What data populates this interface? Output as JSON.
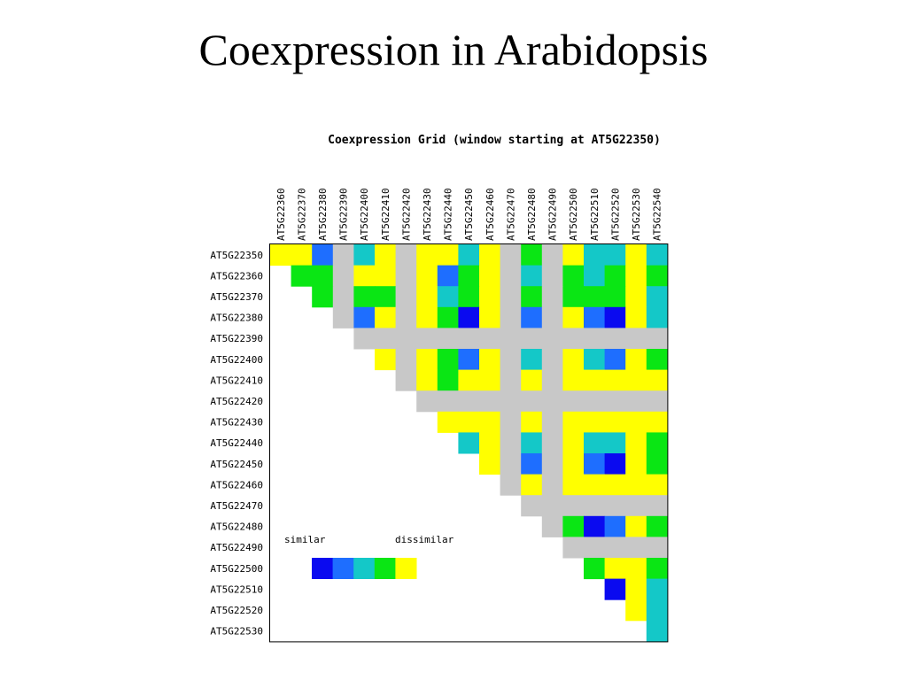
{
  "slide": {
    "title": "Coexpression in Arabidopsis"
  },
  "chart_data": {
    "type": "heatmap",
    "title": "Coexpression Grid (window starting at AT5G22350)",
    "column_labels": [
      "AT5G22360",
      "AT5G22370",
      "AT5G22380",
      "AT5G22390",
      "AT5G22400",
      "AT5G22410",
      "AT5G22420",
      "AT5G22430",
      "AT5G22440",
      "AT5G22450",
      "AT5G22460",
      "AT5G22470",
      "AT5G22480",
      "AT5G22490",
      "AT5G22500",
      "AT5G22510",
      "AT5G22520",
      "AT5G22530",
      "AT5G22540"
    ],
    "row_labels": [
      "AT5G22350",
      "AT5G22360",
      "AT5G22370",
      "AT5G22380",
      "AT5G22390",
      "AT5G22400",
      "AT5G22410",
      "AT5G22420",
      "AT5G22430",
      "AT5G22440",
      "AT5G22450",
      "AT5G22460",
      "AT5G22470",
      "AT5G22480",
      "AT5G22490",
      "AT5G22500",
      "AT5G22510",
      "AT5G22520",
      "AT5G22530"
    ],
    "scale": {
      "low_label": "similar",
      "high_label": "dissimilar",
      "levels": [
        {
          "level": 1,
          "color": "#0a0af0"
        },
        {
          "level": 2,
          "color": "#1e6eff"
        },
        {
          "level": 3,
          "color": "#14c8c8"
        },
        {
          "level": 4,
          "color": "#0ae614"
        },
        {
          "level": 5,
          "color": "#ffff00"
        }
      ],
      "no_data_color": "#c8c8c8"
    },
    "cells": [
      [
        "5",
        "5",
        "2",
        "G",
        "3",
        "5",
        "G",
        "5",
        "5",
        "3",
        "5",
        "G",
        "4",
        "G",
        "5",
        "3",
        "3",
        "5",
        "3"
      ],
      [
        "",
        "4",
        "4",
        "G",
        "5",
        "5",
        "G",
        "5",
        "2",
        "4",
        "5",
        "G",
        "3",
        "G",
        "4",
        "3",
        "4",
        "5",
        "4"
      ],
      [
        "",
        "",
        "4",
        "G",
        "4",
        "4",
        "G",
        "5",
        "3",
        "4",
        "5",
        "G",
        "4",
        "G",
        "4",
        "4",
        "4",
        "5",
        "3"
      ],
      [
        "",
        "",
        "",
        "G",
        "2",
        "5",
        "G",
        "5",
        "4",
        "1",
        "5",
        "G",
        "2",
        "G",
        "5",
        "2",
        "1",
        "5",
        "3"
      ],
      [
        "",
        "",
        "",
        "",
        "G",
        "G",
        "G",
        "G",
        "G",
        "G",
        "G",
        "G",
        "G",
        "G",
        "G",
        "G",
        "G",
        "G",
        "G"
      ],
      [
        "",
        "",
        "",
        "",
        "",
        "5",
        "G",
        "5",
        "4",
        "2",
        "5",
        "G",
        "3",
        "G",
        "5",
        "3",
        "2",
        "5",
        "4"
      ],
      [
        "",
        "",
        "",
        "",
        "",
        "",
        "G",
        "5",
        "4",
        "5",
        "5",
        "G",
        "5",
        "G",
        "5",
        "5",
        "5",
        "5",
        "5"
      ],
      [
        "",
        "",
        "",
        "",
        "",
        "",
        "",
        "G",
        "G",
        "G",
        "G",
        "G",
        "G",
        "G",
        "G",
        "G",
        "G",
        "G",
        "G"
      ],
      [
        "",
        "",
        "",
        "",
        "",
        "",
        "",
        "",
        "5",
        "5",
        "5",
        "G",
        "5",
        "G",
        "5",
        "5",
        "5",
        "5",
        "5"
      ],
      [
        "",
        "",
        "",
        "",
        "",
        "",
        "",
        "",
        "",
        "3",
        "5",
        "G",
        "3",
        "G",
        "5",
        "3",
        "3",
        "5",
        "4"
      ],
      [
        "",
        "",
        "",
        "",
        "",
        "",
        "",
        "",
        "",
        "",
        "5",
        "G",
        "2",
        "G",
        "5",
        "2",
        "1",
        "5",
        "4"
      ],
      [
        "",
        "",
        "",
        "",
        "",
        "",
        "",
        "",
        "",
        "",
        "",
        "G",
        "5",
        "G",
        "5",
        "5",
        "5",
        "5",
        "5"
      ],
      [
        "",
        "",
        "",
        "",
        "",
        "",
        "",
        "",
        "",
        "",
        "",
        "",
        "G",
        "G",
        "G",
        "G",
        "G",
        "G",
        "G"
      ],
      [
        "",
        "",
        "",
        "",
        "",
        "",
        "",
        "",
        "",
        "",
        "",
        "",
        "",
        "G",
        "4",
        "1",
        "2",
        "5",
        "4"
      ],
      [
        "",
        "",
        "",
        "",
        "",
        "",
        "",
        "",
        "",
        "",
        "",
        "",
        "",
        "",
        "G",
        "G",
        "G",
        "G",
        "G"
      ],
      [
        "",
        "",
        "",
        "",
        "",
        "",
        "",
        "",
        "",
        "",
        "",
        "",
        "",
        "",
        "",
        "4",
        "5",
        "5",
        "4"
      ],
      [
        "",
        "",
        "",
        "",
        "",
        "",
        "",
        "",
        "",
        "",
        "",
        "",
        "",
        "",
        "",
        "",
        "1",
        "5",
        "3"
      ],
      [
        "",
        "",
        "",
        "",
        "",
        "",
        "",
        "",
        "",
        "",
        "",
        "",
        "",
        "",
        "",
        "",
        "",
        "5",
        "3"
      ],
      [
        "",
        "",
        "",
        "",
        "",
        "",
        "",
        "",
        "",
        "",
        "",
        "",
        "",
        "",
        "",
        "",
        "",
        "",
        "3"
      ]
    ]
  }
}
